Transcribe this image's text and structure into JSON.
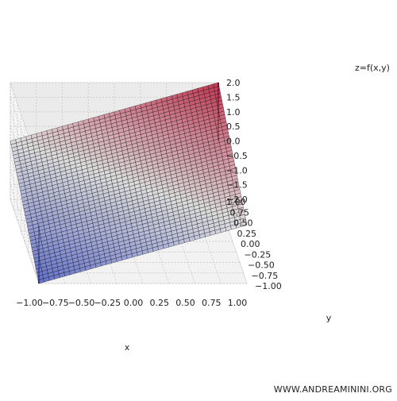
{
  "chart_data": {
    "type": "surface3d",
    "title": "",
    "xlabel": "x",
    "ylabel": "y",
    "zlabel": "z=f(x,y)",
    "xlim": [
      -1,
      1
    ],
    "ylim": [
      -1,
      1
    ],
    "zlim": [
      -2,
      2
    ],
    "x_ticks": [
      "−1.00",
      "−0.75",
      "−0.50",
      "−0.25",
      "0.00",
      "0.25",
      "0.50",
      "0.75",
      "1.00"
    ],
    "y_ticks": [
      "−1.00",
      "−0.75",
      "−0.50",
      "−0.25",
      "0.00",
      "0.25",
      "0.50",
      "0.75",
      "1.00"
    ],
    "z_ticks": [
      "−2.0",
      "−1.5",
      "−1.0",
      "−0.5",
      "0.0",
      "0.5",
      "1.0",
      "1.5",
      "2.0"
    ],
    "function": "z = x + y",
    "surface_corners": [
      {
        "x": -1,
        "y": -1,
        "z": -2
      },
      {
        "x": 1,
        "y": -1,
        "z": 0
      },
      {
        "x": 1,
        "y": 1,
        "z": 2
      },
      {
        "x": -1,
        "y": 1,
        "z": 0
      }
    ],
    "plane": {
      "z": 0
    },
    "colormap": "coolwarm",
    "colors": {
      "low": "#3b4cc0",
      "mid": "#dddddd",
      "high": "#b40426",
      "plane": "#c8c8c8"
    },
    "grid": true
  },
  "watermark": "WWW.ANDREAMININI.ORG"
}
